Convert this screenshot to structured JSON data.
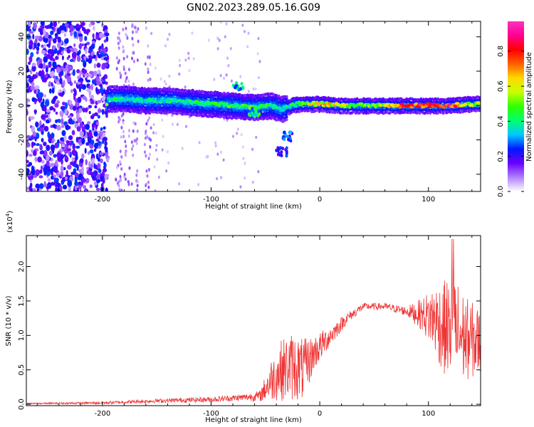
{
  "title": "GN02.2023.289.05.16.G09",
  "colors": {
    "snr_line": "#ee3333",
    "axis": "#000000",
    "background": "#ffffff"
  },
  "chart_data": [
    {
      "type": "heatmap",
      "xlabel": "Height of straight line (km)",
      "ylabel": "Frequency (Hz)",
      "xlim": [
        -270,
        148
      ],
      "ylim": [
        -50,
        49
      ],
      "x_ticks": [
        -200,
        -100,
        0,
        100
      ],
      "x_tick_labels": [
        "-200",
        "-100",
        "0",
        "100"
      ],
      "y_ticks": [
        -40,
        -20,
        0,
        20,
        40
      ],
      "y_tick_labels": [
        "-40",
        "-20",
        "0",
        "20",
        "40"
      ],
      "colorbar": {
        "label": "Normalized spectral amplitude",
        "range": [
          0,
          0.97
        ],
        "ticks": [
          0,
          0.2,
          0.4,
          0.6,
          0.8
        ],
        "tick_labels": [
          "0.0",
          "0.2",
          "0.4",
          "0.6",
          "0.8"
        ],
        "colors": [
          "#ffffff",
          "#b080ff",
          "#6a00ff",
          "#0018ff",
          "#00c8ff",
          "#00ff70",
          "#30ff00",
          "#c8ff00",
          "#ffd800",
          "#ff6000",
          "#ff0000",
          "#ff0090",
          "#ff30c0"
        ]
      },
      "signal_track": [
        {
          "x": -195,
          "freq": 4,
          "amp": 0.45
        },
        {
          "x": -180,
          "freq": 4,
          "amp": 0.42
        },
        {
          "x": -160,
          "freq": 3,
          "amp": 0.38
        },
        {
          "x": -140,
          "freq": 3,
          "amp": 0.42
        },
        {
          "x": -120,
          "freq": 2,
          "amp": 0.45
        },
        {
          "x": -100,
          "freq": 1,
          "amp": 0.5
        },
        {
          "x": -80,
          "freq": 0,
          "amp": 0.48
        },
        {
          "x": -60,
          "freq": -1,
          "amp": 0.5
        },
        {
          "x": -45,
          "freq": 0,
          "amp": 0.45
        },
        {
          "x": -35,
          "freq": -2,
          "amp": 0.35
        },
        {
          "x": -20,
          "freq": 1,
          "amp": 0.5
        },
        {
          "x": 0,
          "freq": 1,
          "amp": 0.7
        },
        {
          "x": 20,
          "freq": 0,
          "amp": 0.6
        },
        {
          "x": 40,
          "freq": 0,
          "amp": 0.55
        },
        {
          "x": 60,
          "freq": 0,
          "amp": 0.6
        },
        {
          "x": 80,
          "freq": 0,
          "amp": 0.85
        },
        {
          "x": 100,
          "freq": 0,
          "amp": 0.8
        },
        {
          "x": 120,
          "freq": 0,
          "amp": 0.9
        },
        {
          "x": 140,
          "freq": 1,
          "amp": 0.6
        }
      ],
      "secondary_features": [
        {
          "x": -60,
          "freq": -4,
          "amp": 0.45
        },
        {
          "x": -75,
          "freq": 11,
          "amp": 0.4
        },
        {
          "x": -30,
          "freq": -18,
          "amp": 0.3
        },
        {
          "x": -35,
          "freq": -27,
          "amp": 0.25
        }
      ],
      "noise_region": {
        "x_from": -270,
        "x_to": -195
      }
    },
    {
      "type": "line",
      "xlabel": "Height of straight line (km)",
      "ylabel": "SNR (10 * v/v)",
      "y_multiplier": "(x10^4)",
      "xlim": [
        -270,
        148
      ],
      "ylim": [
        -0.02,
        2.45
      ],
      "x_ticks": [
        -200,
        -100,
        0,
        100
      ],
      "x_tick_labels": [
        "-200",
        "-100",
        "0",
        "100"
      ],
      "y_ticks": [
        0,
        0.5,
        1.0,
        1.5,
        2.0
      ],
      "y_tick_labels": [
        "0.0",
        "0.5",
        "1.0",
        "1.5",
        "2.0"
      ],
      "envelope_x": [
        -270,
        -200,
        -150,
        -100,
        -70,
        -55,
        -45,
        -35,
        -25,
        -15,
        -5,
        10,
        25,
        40,
        60,
        80,
        95,
        105,
        115,
        125,
        135,
        148
      ],
      "envelope_mean": [
        0.01,
        0.02,
        0.05,
        0.07,
        0.1,
        0.12,
        0.35,
        0.5,
        0.55,
        0.5,
        0.75,
        1.0,
        1.25,
        1.42,
        1.42,
        1.35,
        1.3,
        1.25,
        1.1,
        1.05,
        0.95,
        0.9
      ],
      "envelope_amp": [
        0.01,
        0.02,
        0.03,
        0.04,
        0.05,
        0.08,
        0.3,
        0.45,
        0.5,
        0.45,
        0.25,
        0.15,
        0.08,
        0.05,
        0.05,
        0.07,
        0.25,
        0.5,
        0.7,
        0.8,
        0.6,
        0.5
      ],
      "peak_value": 2.4
    }
  ]
}
